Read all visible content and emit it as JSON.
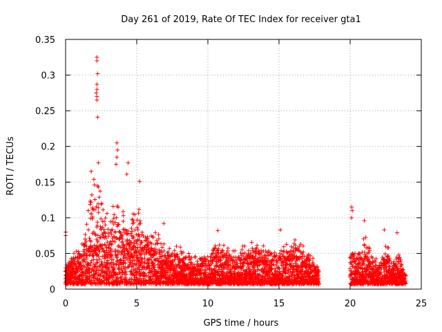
{
  "chart_data": {
    "type": "scatter",
    "title": "Day 261 of 2019, Rate Of TEC Index for receiver gta1",
    "xlabel": "GPS time / hours",
    "ylabel": "ROTI / TECUs",
    "xlim": [
      0,
      25
    ],
    "ylim": [
      0,
      0.35
    ],
    "xticks": [
      0,
      5,
      10,
      15,
      20,
      25
    ],
    "xtick_labels": [
      "0",
      "5",
      "10",
      "15",
      "20",
      "25"
    ],
    "yticks": [
      0,
      0.05,
      0.1,
      0.15,
      0.2,
      0.25,
      0.3,
      0.35
    ],
    "ytick_labels": [
      "0",
      "0.05",
      "0.1",
      "0.15",
      "0.2",
      "0.25",
      "0.3",
      "0.35"
    ],
    "grid": true,
    "marker": "+",
    "marker_color": "#ff0000",
    "series": [
      {
        "name": "ROTI",
        "data_segments": [
          {
            "x_range": [
              0.0,
              17.8
            ],
            "note": "continuous dense data"
          },
          {
            "x_range": [
              20.0,
              23.9
            ],
            "note": "continuous dense data after gap"
          }
        ],
        "notable_points": [
          {
            "x": 0.0,
            "y": 0.08
          },
          {
            "x": 0.0,
            "y": 0.075
          },
          {
            "x": 1.8,
            "y": 0.165
          },
          {
            "x": 2.2,
            "y": 0.325
          },
          {
            "x": 2.2,
            "y": 0.32
          },
          {
            "x": 2.25,
            "y": 0.302
          },
          {
            "x": 2.2,
            "y": 0.287
          },
          {
            "x": 2.2,
            "y": 0.28
          },
          {
            "x": 2.15,
            "y": 0.275
          },
          {
            "x": 2.2,
            "y": 0.27
          },
          {
            "x": 2.2,
            "y": 0.265
          },
          {
            "x": 2.25,
            "y": 0.241
          },
          {
            "x": 2.3,
            "y": 0.177
          },
          {
            "x": 3.6,
            "y": 0.205
          },
          {
            "x": 3.65,
            "y": 0.195
          },
          {
            "x": 3.6,
            "y": 0.185
          },
          {
            "x": 3.55,
            "y": 0.175
          },
          {
            "x": 4.4,
            "y": 0.177
          },
          {
            "x": 4.3,
            "y": 0.161
          },
          {
            "x": 5.2,
            "y": 0.151
          },
          {
            "x": 6.9,
            "y": 0.092
          },
          {
            "x": 10.7,
            "y": 0.082
          },
          {
            "x": 15.1,
            "y": 0.083
          },
          {
            "x": 20.1,
            "y": 0.115
          },
          {
            "x": 20.15,
            "y": 0.11
          },
          {
            "x": 20.1,
            "y": 0.1
          },
          {
            "x": 21.0,
            "y": 0.096
          },
          {
            "x": 22.4,
            "y": 0.083
          },
          {
            "x": 23.3,
            "y": 0.079
          }
        ],
        "envelope": [
          {
            "x": 0.0,
            "ymax": 0.035
          },
          {
            "x": 0.5,
            "ymax": 0.045
          },
          {
            "x": 1.0,
            "ymax": 0.06
          },
          {
            "x": 1.5,
            "ymax": 0.09
          },
          {
            "x": 2.0,
            "ymax": 0.14
          },
          {
            "x": 2.5,
            "ymax": 0.13
          },
          {
            "x": 3.0,
            "ymax": 0.09
          },
          {
            "x": 3.5,
            "ymax": 0.12
          },
          {
            "x": 4.0,
            "ymax": 0.1
          },
          {
            "x": 4.5,
            "ymax": 0.085
          },
          {
            "x": 5.0,
            "ymax": 0.11
          },
          {
            "x": 5.5,
            "ymax": 0.09
          },
          {
            "x": 6.0,
            "ymax": 0.08
          },
          {
            "x": 6.5,
            "ymax": 0.07
          },
          {
            "x": 7.0,
            "ymax": 0.055
          },
          {
            "x": 8.0,
            "ymax": 0.055
          },
          {
            "x": 9.0,
            "ymax": 0.04
          },
          {
            "x": 10.0,
            "ymax": 0.05
          },
          {
            "x": 11.0,
            "ymax": 0.06
          },
          {
            "x": 12.0,
            "ymax": 0.05
          },
          {
            "x": 13.0,
            "ymax": 0.06
          },
          {
            "x": 14.0,
            "ymax": 0.055
          },
          {
            "x": 15.0,
            "ymax": 0.05
          },
          {
            "x": 16.0,
            "ymax": 0.065
          },
          {
            "x": 17.0,
            "ymax": 0.05
          },
          {
            "x": 17.8,
            "ymax": 0.03
          },
          {
            "x": 20.0,
            "ymax": 0.05
          },
          {
            "x": 20.5,
            "ymax": 0.045
          },
          {
            "x": 21.0,
            "ymax": 0.07
          },
          {
            "x": 21.5,
            "ymax": 0.045
          },
          {
            "x": 22.0,
            "ymax": 0.04
          },
          {
            "x": 22.5,
            "ymax": 0.06
          },
          {
            "x": 23.0,
            "ymax": 0.04
          },
          {
            "x": 23.5,
            "ymax": 0.045
          },
          {
            "x": 23.9,
            "ymax": 0.02
          }
        ]
      }
    ]
  }
}
